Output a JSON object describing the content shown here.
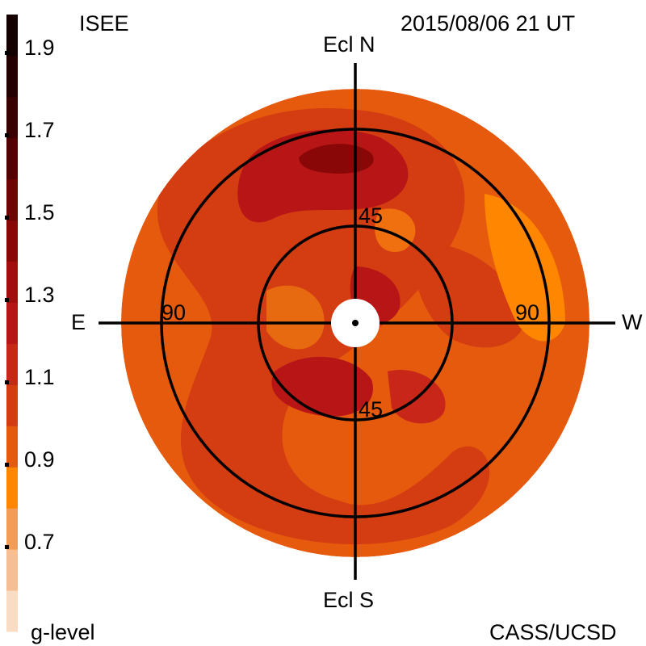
{
  "header": {
    "source": "ISEE",
    "timestamp": "2015/08/06 21 UT"
  },
  "footer": {
    "quantity": "g-level",
    "credit": "CASS/UCSD"
  },
  "map": {
    "top_label": "Ecl N",
    "bottom_label": "Ecl S",
    "left_label": "E",
    "right_label": "W",
    "ring_labels": {
      "left_90": "90",
      "right_90": "90",
      "top_45": "45",
      "bottom_45": "45"
    }
  },
  "colorbar": {
    "ticks": [
      "1.9",
      "1.7",
      "1.5",
      "1.3",
      "1.1",
      "0.9",
      "0.7"
    ],
    "colors": [
      "#f9dcc4",
      "#f6be94",
      "#f49b56",
      "#ff8600",
      "#e65a0e",
      "#d43c12",
      "#c72618",
      "#b81616",
      "#a30d0d",
      "#8a0707",
      "#6e0404",
      "#520202",
      "#3a0101",
      "#240000",
      "#150000"
    ]
  },
  "palette": {
    "outer": "#e65a0e",
    "mid": "#d43c12",
    "dark": "#b81616",
    "darker": "#8a0707",
    "light": "#ff8600",
    "lighter": "#f49b56"
  }
}
